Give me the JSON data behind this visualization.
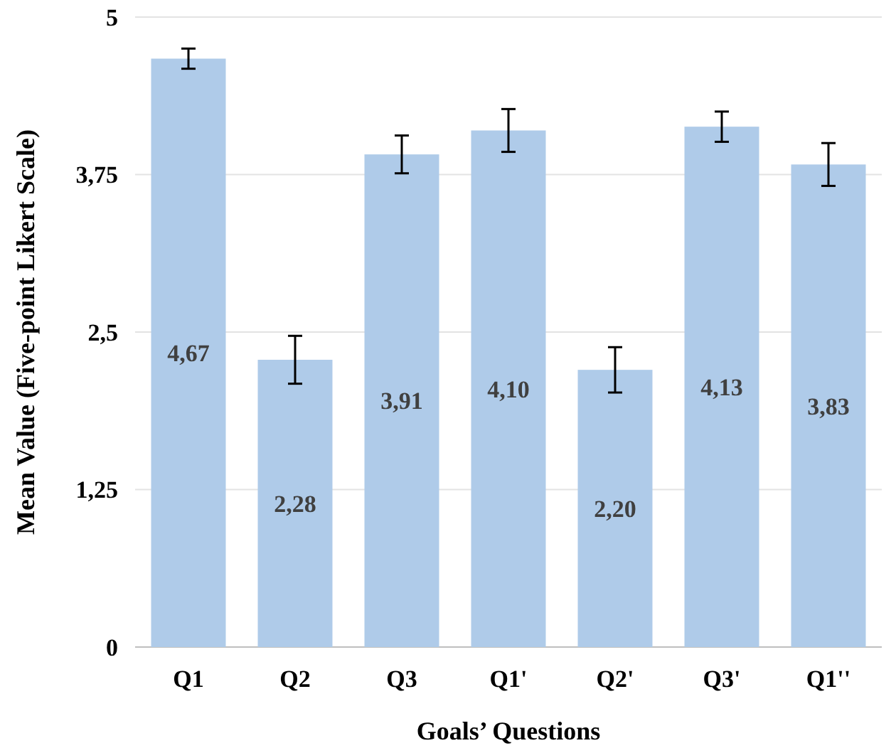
{
  "chart_data": {
    "type": "bar",
    "xlabel": "Goals’ Questions",
    "ylabel": "Mean Value (Five-point Likert Scale)",
    "categories": [
      "Q1",
      "Q2",
      "Q3",
      "Q1'",
      "Q2'",
      "Q3'",
      "Q1''"
    ],
    "values": [
      4.67,
      2.28,
      3.91,
      4.1,
      2.2,
      4.13,
      3.83
    ],
    "value_labels": [
      "4,67",
      "2,28",
      "3,91",
      "4,10",
      "2,20",
      "4,13",
      "3,83"
    ],
    "errors": [
      0.08,
      0.19,
      0.15,
      0.17,
      0.18,
      0.12,
      0.17
    ],
    "color": "#afcbe9",
    "ylim": [
      0,
      5
    ],
    "yticks": [
      0,
      {
        "value": 1.25,
        "label": "1,25"
      },
      {
        "value": 2.5,
        "label": "2,5"
      },
      {
        "value": 3.75,
        "label": "3,75"
      },
      5
    ],
    "grid": "y"
  }
}
